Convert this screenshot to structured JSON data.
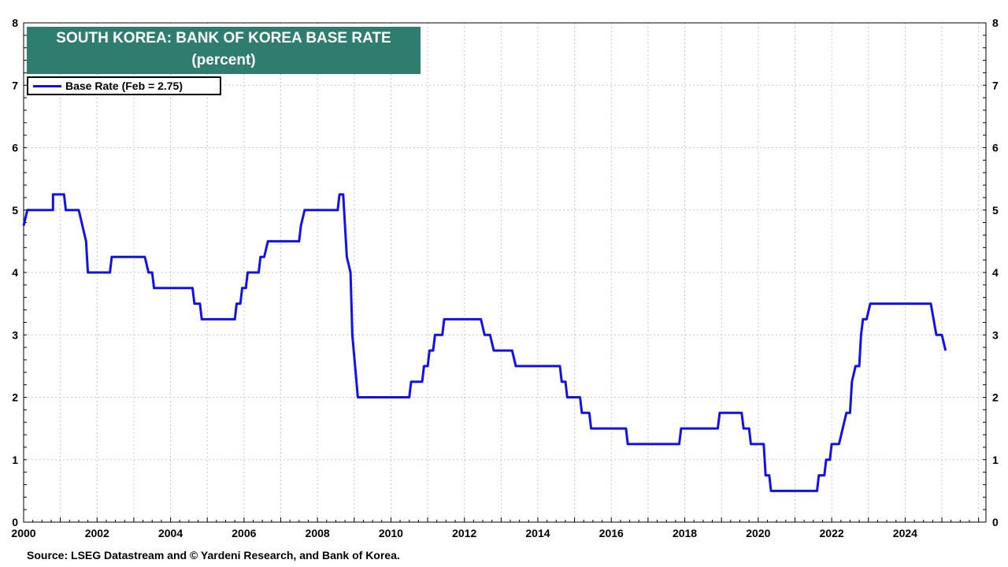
{
  "chart_data": {
    "type": "line",
    "title": "SOUTH KOREA: BANK OF KOREA BASE RATE",
    "subtitle": "(percent)",
    "source": "Source: LSEG Datastream and © Yardeni Research, and Bank of Korea.",
    "legend_position": "top-left",
    "grid": true,
    "xlim": [
      2000,
      2026.2
    ],
    "ylim": [
      0,
      8
    ],
    "x_ticks": [
      "2000",
      "2002",
      "2004",
      "2006",
      "2008",
      "2010",
      "2012",
      "2014",
      "2016",
      "2018",
      "2020",
      "2022",
      "2024"
    ],
    "y_ticks": [
      "0",
      "1",
      "2",
      "3",
      "4",
      "5",
      "6",
      "7",
      "8"
    ],
    "series": [
      {
        "name": "Base Rate (Feb = 2.75)",
        "color": "#1111ee",
        "points": [
          [
            2000.0,
            4.75
          ],
          [
            2000.1,
            5.0
          ],
          [
            2000.8,
            5.0
          ],
          [
            2000.8,
            5.25
          ],
          [
            2001.1,
            5.25
          ],
          [
            2001.15,
            5.0
          ],
          [
            2001.5,
            5.0
          ],
          [
            2001.7,
            4.5
          ],
          [
            2001.75,
            4.0
          ],
          [
            2002.35,
            4.0
          ],
          [
            2002.4,
            4.25
          ],
          [
            2003.3,
            4.25
          ],
          [
            2003.4,
            4.0
          ],
          [
            2003.5,
            4.0
          ],
          [
            2003.55,
            3.75
          ],
          [
            2004.6,
            3.75
          ],
          [
            2004.65,
            3.5
          ],
          [
            2004.8,
            3.5
          ],
          [
            2004.85,
            3.25
          ],
          [
            2005.75,
            3.25
          ],
          [
            2005.8,
            3.5
          ],
          [
            2005.9,
            3.5
          ],
          [
            2005.95,
            3.75
          ],
          [
            2006.05,
            3.75
          ],
          [
            2006.1,
            4.0
          ],
          [
            2006.4,
            4.0
          ],
          [
            2006.45,
            4.25
          ],
          [
            2006.55,
            4.25
          ],
          [
            2006.65,
            4.5
          ],
          [
            2007.5,
            4.5
          ],
          [
            2007.55,
            4.75
          ],
          [
            2007.65,
            5.0
          ],
          [
            2008.55,
            5.0
          ],
          [
            2008.6,
            5.25
          ],
          [
            2008.7,
            5.25
          ],
          [
            2008.8,
            4.25
          ],
          [
            2008.9,
            4.0
          ],
          [
            2008.95,
            3.0
          ],
          [
            2009.1,
            2.0
          ],
          [
            2010.5,
            2.0
          ],
          [
            2010.55,
            2.25
          ],
          [
            2010.85,
            2.25
          ],
          [
            2010.9,
            2.5
          ],
          [
            2011.0,
            2.5
          ],
          [
            2011.05,
            2.75
          ],
          [
            2011.15,
            2.75
          ],
          [
            2011.2,
            3.0
          ],
          [
            2011.4,
            3.0
          ],
          [
            2011.45,
            3.25
          ],
          [
            2012.45,
            3.25
          ],
          [
            2012.55,
            3.0
          ],
          [
            2012.7,
            3.0
          ],
          [
            2012.8,
            2.75
          ],
          [
            2013.3,
            2.75
          ],
          [
            2013.4,
            2.5
          ],
          [
            2014.6,
            2.5
          ],
          [
            2014.65,
            2.25
          ],
          [
            2014.75,
            2.25
          ],
          [
            2014.8,
            2.0
          ],
          [
            2015.15,
            2.0
          ],
          [
            2015.2,
            1.75
          ],
          [
            2015.4,
            1.75
          ],
          [
            2015.45,
            1.5
          ],
          [
            2016.4,
            1.5
          ],
          [
            2016.45,
            1.25
          ],
          [
            2017.85,
            1.25
          ],
          [
            2017.9,
            1.5
          ],
          [
            2018.9,
            1.5
          ],
          [
            2018.95,
            1.75
          ],
          [
            2019.55,
            1.75
          ],
          [
            2019.6,
            1.5
          ],
          [
            2019.75,
            1.5
          ],
          [
            2019.8,
            1.25
          ],
          [
            2020.15,
            1.25
          ],
          [
            2020.2,
            0.75
          ],
          [
            2020.3,
            0.75
          ],
          [
            2020.35,
            0.5
          ],
          [
            2021.6,
            0.5
          ],
          [
            2021.65,
            0.75
          ],
          [
            2021.8,
            0.75
          ],
          [
            2021.85,
            1.0
          ],
          [
            2021.95,
            1.0
          ],
          [
            2022.0,
            1.25
          ],
          [
            2022.2,
            1.25
          ],
          [
            2022.3,
            1.5
          ],
          [
            2022.4,
            1.75
          ],
          [
            2022.5,
            1.75
          ],
          [
            2022.55,
            2.25
          ],
          [
            2022.65,
            2.5
          ],
          [
            2022.75,
            2.5
          ],
          [
            2022.8,
            3.0
          ],
          [
            2022.85,
            3.25
          ],
          [
            2022.95,
            3.25
          ],
          [
            2023.05,
            3.5
          ],
          [
            2024.7,
            3.5
          ],
          [
            2024.85,
            3.0
          ],
          [
            2025.0,
            3.0
          ],
          [
            2025.1,
            2.75
          ]
        ]
      }
    ]
  }
}
